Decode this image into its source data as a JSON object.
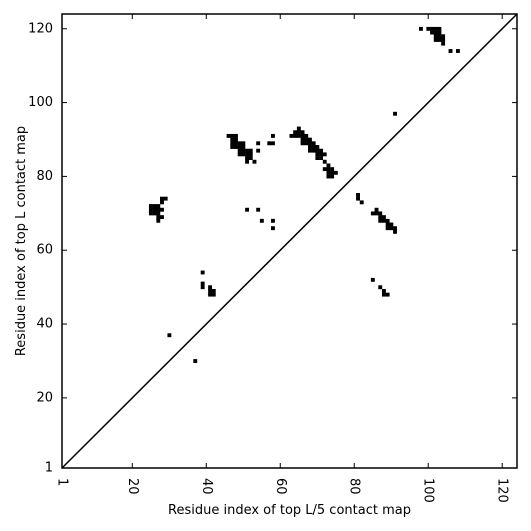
{
  "chart_data": {
    "type": "scatter",
    "title": "",
    "xlabel": "Residue index of top L/5 contact map",
    "ylabel": "Residue index of top L contact map",
    "xlim": [
      1,
      124
    ],
    "ylim": [
      1,
      124
    ],
    "x_ticks": [
      1,
      20,
      40,
      60,
      80,
      100,
      120
    ],
    "y_ticks": [
      1,
      20,
      40,
      60,
      80,
      100,
      120
    ],
    "x_tick_labels": [
      "1",
      "20",
      "40",
      "60",
      "80",
      "100",
      "120"
    ],
    "y_tick_labels": [
      "1",
      "20",
      "40",
      "60",
      "80",
      "100",
      "120"
    ],
    "x_tick_rotation": "vertical",
    "diagonal": [
      [
        1,
        1
      ],
      [
        124,
        124
      ]
    ],
    "marker": "square",
    "color": "#000000",
    "grid": false,
    "series": [
      {
        "points": [
          [
            98,
            120
          ],
          [
            100,
            120
          ],
          [
            101,
            120
          ],
          [
            102,
            120
          ],
          [
            103,
            120
          ],
          [
            101,
            119
          ],
          [
            102,
            119
          ],
          [
            103,
            119
          ],
          [
            102,
            118
          ],
          [
            103,
            118
          ],
          [
            104,
            118
          ],
          [
            102,
            117
          ],
          [
            103,
            117
          ],
          [
            104,
            117
          ],
          [
            104,
            116
          ],
          [
            106,
            114
          ],
          [
            108,
            114
          ],
          [
            91,
            97
          ],
          [
            46,
            91
          ],
          [
            47,
            91
          ],
          [
            48,
            91
          ],
          [
            58,
            91
          ],
          [
            47,
            90
          ],
          [
            48,
            90
          ],
          [
            47,
            89
          ],
          [
            48,
            89
          ],
          [
            49,
            89
          ],
          [
            50,
            89
          ],
          [
            54,
            89
          ],
          [
            57,
            89
          ],
          [
            58,
            89
          ],
          [
            47,
            88
          ],
          [
            48,
            88
          ],
          [
            49,
            88
          ],
          [
            50,
            88
          ],
          [
            49,
            87
          ],
          [
            50,
            87
          ],
          [
            51,
            87
          ],
          [
            52,
            87
          ],
          [
            54,
            87
          ],
          [
            49,
            86
          ],
          [
            50,
            86
          ],
          [
            51,
            86
          ],
          [
            52,
            86
          ],
          [
            51,
            85
          ],
          [
            52,
            85
          ],
          [
            51,
            84
          ],
          [
            53,
            84
          ],
          [
            65,
            93
          ],
          [
            64,
            92
          ],
          [
            65,
            92
          ],
          [
            66,
            92
          ],
          [
            63,
            91
          ],
          [
            64,
            91
          ],
          [
            65,
            91
          ],
          [
            66,
            91
          ],
          [
            67,
            91
          ],
          [
            66,
            90
          ],
          [
            67,
            90
          ],
          [
            68,
            90
          ],
          [
            66,
            89
          ],
          [
            67,
            89
          ],
          [
            68,
            89
          ],
          [
            69,
            89
          ],
          [
            68,
            88
          ],
          [
            69,
            88
          ],
          [
            70,
            88
          ],
          [
            68,
            87
          ],
          [
            69,
            87
          ],
          [
            70,
            87
          ],
          [
            71,
            87
          ],
          [
            70,
            86
          ],
          [
            71,
            86
          ],
          [
            72,
            86
          ],
          [
            70,
            85
          ],
          [
            71,
            85
          ],
          [
            72,
            84
          ],
          [
            73,
            83
          ],
          [
            72,
            82
          ],
          [
            73,
            82
          ],
          [
            74,
            82
          ],
          [
            73,
            81
          ],
          [
            74,
            81
          ],
          [
            75,
            81
          ],
          [
            73,
            80
          ],
          [
            74,
            80
          ],
          [
            81,
            75
          ],
          [
            81,
            74
          ],
          [
            82,
            73
          ],
          [
            28,
            74
          ],
          [
            29,
            74
          ],
          [
            28,
            73
          ],
          [
            25,
            72
          ],
          [
            26,
            72
          ],
          [
            27,
            72
          ],
          [
            25,
            71
          ],
          [
            26,
            71
          ],
          [
            27,
            71
          ],
          [
            28,
            71
          ],
          [
            25,
            70
          ],
          [
            26,
            70
          ],
          [
            27,
            70
          ],
          [
            27,
            69
          ],
          [
            28,
            69
          ],
          [
            27,
            68
          ],
          [
            51,
            71
          ],
          [
            54,
            71
          ],
          [
            55,
            68
          ],
          [
            58,
            68
          ],
          [
            58,
            66
          ],
          [
            86,
            71
          ],
          [
            85,
            70
          ],
          [
            86,
            70
          ],
          [
            87,
            70
          ],
          [
            87,
            69
          ],
          [
            88,
            69
          ],
          [
            87,
            68
          ],
          [
            88,
            68
          ],
          [
            89,
            68
          ],
          [
            89,
            67
          ],
          [
            90,
            67
          ],
          [
            89,
            66
          ],
          [
            90,
            66
          ],
          [
            91,
            66
          ],
          [
            91,
            65
          ],
          [
            39,
            54
          ],
          [
            85,
            52
          ],
          [
            39,
            51
          ],
          [
            39,
            50
          ],
          [
            41,
            50
          ],
          [
            87,
            50
          ],
          [
            41,
            49
          ],
          [
            42,
            49
          ],
          [
            88,
            49
          ],
          [
            41,
            48
          ],
          [
            42,
            48
          ],
          [
            88,
            48
          ],
          [
            89,
            48
          ],
          [
            30,
            37
          ],
          [
            37,
            30
          ]
        ]
      }
    ]
  }
}
